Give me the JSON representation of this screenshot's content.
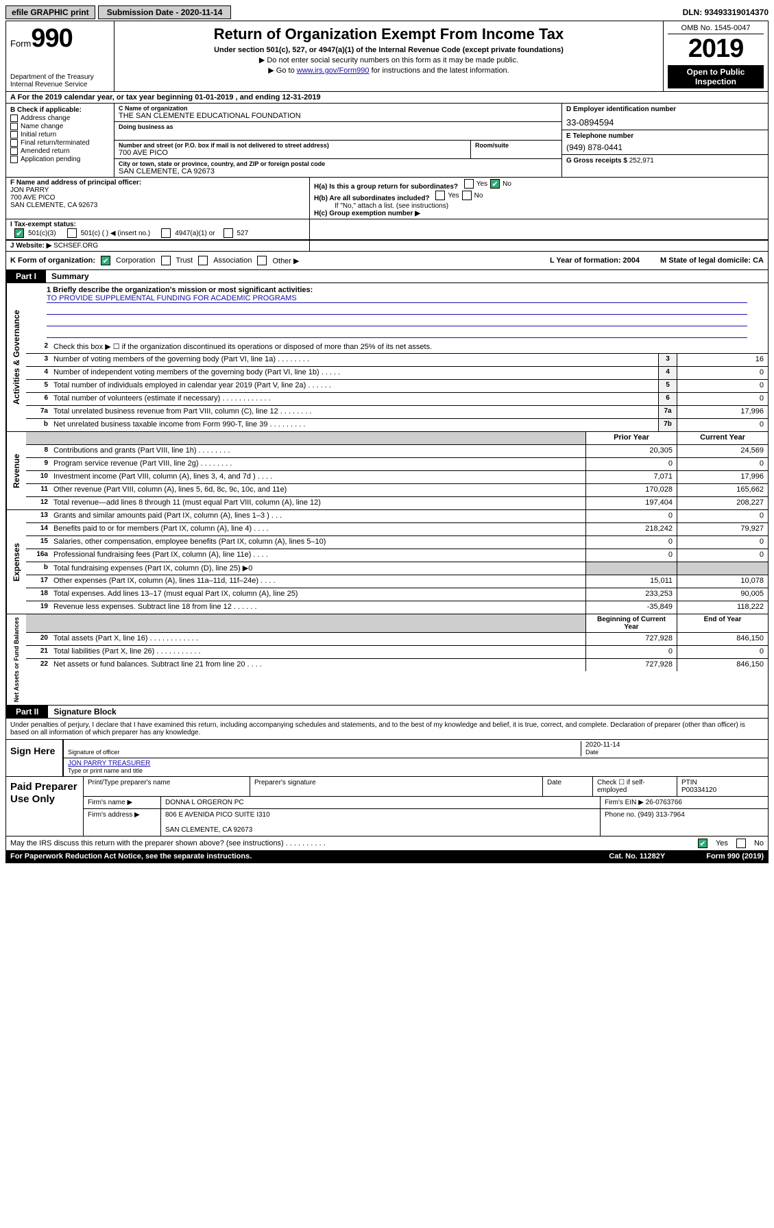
{
  "topbar": {
    "efile": "efile GRAPHIC print",
    "subdate_label": "Submission Date - 2020-11-14",
    "dln": "DLN: 93493319014370"
  },
  "header": {
    "form_prefix": "Form",
    "form_num": "990",
    "dept": "Department of the Treasury\nInternal Revenue Service",
    "title": "Return of Organization Exempt From Income Tax",
    "sub1": "Under section 501(c), 527, or 4947(a)(1) of the Internal Revenue Code (except private foundations)",
    "sub2": "▶ Do not enter social security numbers on this form as it may be made public.",
    "sub3_pre": "▶ Go to ",
    "sub3_link": "www.irs.gov/Form990",
    "sub3_post": " for instructions and the latest information.",
    "omb": "OMB No. 1545-0047",
    "year": "2019",
    "open": "Open to Public Inspection"
  },
  "lineA": "A For the 2019 calendar year, or tax year beginning 01-01-2019     , and ending 12-31-2019",
  "boxB": {
    "hdr": "B Check if applicable:",
    "items": [
      "Address change",
      "Name change",
      "Initial return",
      "Final return/terminated",
      "Amended return",
      "Application pending"
    ]
  },
  "boxC": {
    "name_lbl": "C Name of organization",
    "name": "THE SAN CLEMENTE EDUCATIONAL FOUNDATION",
    "dba_lbl": "Doing business as",
    "addr_lbl": "Number and street (or P.O. box if mail is not delivered to street address)",
    "room_lbl": "Room/suite",
    "addr": "700 AVE PICO",
    "city_lbl": "City or town, state or province, country, and ZIP or foreign postal code",
    "city": "SAN CLEMENTE, CA  92673"
  },
  "boxD": {
    "lbl": "D Employer identification number",
    "val": "33-0894594"
  },
  "boxE": {
    "lbl": "E Telephone number",
    "val": "(949) 878-0441"
  },
  "boxG": {
    "lbl": "G Gross receipts $",
    "val": "252,971"
  },
  "boxF": {
    "lbl": "F  Name and address of principal officer:",
    "name": "JON PARRY",
    "addr1": "700 AVE PICO",
    "addr2": "SAN CLEMENTE, CA  92673"
  },
  "boxH": {
    "a": "H(a)  Is this a group return for subordinates?",
    "b": "H(b)  Are all subordinates included?",
    "note": "If \"No,\" attach a list. (see instructions)",
    "c": "H(c)  Group exemption number ▶"
  },
  "boxI": {
    "lbl": "I   Tax-exempt status:",
    "c1": "501(c)(3)",
    "c2": "501(c) (   ) ◀ (insert no.)",
    "c3": "4947(a)(1) or",
    "c4": "527"
  },
  "boxJ": {
    "lbl": "J   Website: ▶",
    "val": "SCHSEF.ORG"
  },
  "boxK": {
    "lbl": "K Form of organization:",
    "opts": [
      "Corporation",
      "Trust",
      "Association",
      "Other ▶"
    ],
    "L": "L Year of formation: 2004",
    "M": "M State of legal domicile: CA"
  },
  "part1": {
    "tag": "Part I",
    "title": "Summary"
  },
  "mission": {
    "q": "1  Briefly describe the organization's mission or most significant activities:",
    "a": "TO PROVIDE SUPPLEMENTAL FUNDING FOR ACADEMIC PROGRAMS"
  },
  "gov": {
    "label": "Activities & Governance",
    "l2": "Check this box ▶ ☐  if the organization discontinued its operations or disposed of more than 25% of its net assets.",
    "rows": [
      {
        "n": "3",
        "t": "Number of voting members of the governing body (Part VI, line 1a)   .    .    .    .    .    .    .    .",
        "b": "3",
        "v": "16"
      },
      {
        "n": "4",
        "t": "Number of independent voting members of the governing body (Part VI, line 1b)   .    .    .    .    .",
        "b": "4",
        "v": "0"
      },
      {
        "n": "5",
        "t": "Total number of individuals employed in calendar year 2019 (Part V, line 2a)   .    .    .    .    .    .",
        "b": "5",
        "v": "0"
      },
      {
        "n": "6",
        "t": "Total number of volunteers (estimate if necessary)   .    .    .    .    .    .    .    .    .    .    .    .",
        "b": "6",
        "v": "0"
      },
      {
        "n": "7a",
        "t": "Total unrelated business revenue from Part VIII, column (C), line 12   .    .    .    .    .    .    .    .",
        "b": "7a",
        "v": "17,996"
      },
      {
        "n": "b",
        "t": "Net unrelated business taxable income from Form 990-T, line 39   .    .    .    .    .    .    .    .    .",
        "b": "7b",
        "v": "0"
      }
    ]
  },
  "rev": {
    "label": "Revenue",
    "hdr": {
      "py": "Prior Year",
      "cy": "Current Year"
    },
    "rows": [
      {
        "n": "8",
        "t": "Contributions and grants (Part VIII, line 1h)   .    .    .    .    .    .    .    .",
        "py": "20,305",
        "cy": "24,569"
      },
      {
        "n": "9",
        "t": "Program service revenue (Part VIII, line 2g)   .    .    .    .    .    .    .    .",
        "py": "0",
        "cy": "0"
      },
      {
        "n": "10",
        "t": "Investment income (Part VIII, column (A), lines 3, 4, and 7d )   .    .    .    .",
        "py": "7,071",
        "cy": "17,996"
      },
      {
        "n": "11",
        "t": "Other revenue (Part VIII, column (A), lines 5, 6d, 8c, 9c, 10c, and 11e)",
        "py": "170,028",
        "cy": "165,662"
      },
      {
        "n": "12",
        "t": "Total revenue—add lines 8 through 11 (must equal Part VIII, column (A), line 12)",
        "py": "197,404",
        "cy": "208,227"
      }
    ]
  },
  "exp": {
    "label": "Expenses",
    "rows": [
      {
        "n": "13",
        "t": "Grants and similar amounts paid (Part IX, column (A), lines 1–3 )   .    .    .",
        "py": "0",
        "cy": "0"
      },
      {
        "n": "14",
        "t": "Benefits paid to or for members (Part IX, column (A), line 4)   .    .    .    .",
        "py": "218,242",
        "cy": "79,927"
      },
      {
        "n": "15",
        "t": "Salaries, other compensation, employee benefits (Part IX, column (A), lines 5–10)",
        "py": "0",
        "cy": "0"
      },
      {
        "n": "16a",
        "t": "Professional fundraising fees (Part IX, column (A), line 11e)   .    .    .    .",
        "py": "0",
        "cy": "0"
      },
      {
        "n": "b",
        "t": "Total fundraising expenses (Part IX, column (D), line 25) ▶0",
        "py": "",
        "cy": "",
        "shade": true
      },
      {
        "n": "17",
        "t": "Other expenses (Part IX, column (A), lines 11a–11d, 11f–24e)   .    .    .    .",
        "py": "15,011",
        "cy": "10,078"
      },
      {
        "n": "18",
        "t": "Total expenses. Add lines 13–17 (must equal Part IX, column (A), line 25)",
        "py": "233,253",
        "cy": "90,005"
      },
      {
        "n": "19",
        "t": "Revenue less expenses. Subtract line 18 from line 12   .    .    .    .    .    .",
        "py": "-35,849",
        "cy": "118,222"
      }
    ]
  },
  "net": {
    "label": "Net Assets or Fund Balances",
    "hdr": {
      "py": "Beginning of Current Year",
      "cy": "End of Year"
    },
    "rows": [
      {
        "n": "20",
        "t": "Total assets (Part X, line 16)   .    .    .    .    .    .    .    .    .    .    .    .",
        "py": "727,928",
        "cy": "846,150"
      },
      {
        "n": "21",
        "t": "Total liabilities (Part X, line 26)   .    .    .    .    .    .    .    .    .    .    .",
        "py": "0",
        "cy": "0"
      },
      {
        "n": "22",
        "t": "Net assets or fund balances. Subtract line 21 from line 20   .    .    .    .",
        "py": "727,928",
        "cy": "846,150"
      }
    ]
  },
  "part2": {
    "tag": "Part II",
    "title": "Signature Block"
  },
  "perjury": "Under penalties of perjury, I declare that I have examined this return, including accompanying schedules and statements, and to the best of my knowledge and belief, it is true, correct, and complete. Declaration of preparer (other than officer) is based on all information of which preparer has any knowledge.",
  "sign": {
    "here": "Sign Here",
    "sig_lbl": "Signature of officer",
    "date_lbl": "Date",
    "date": "2020-11-14",
    "name": "JON PARRY  TREASURER",
    "name_lbl": "Type or print name and title"
  },
  "paid": {
    "lbl": "Paid Preparer Use Only",
    "h1": "Print/Type preparer's name",
    "h2": "Preparer's signature",
    "h3": "Date",
    "h4a": "Check ☐ if self-employed",
    "h4b": "PTIN",
    "ptin": "P00334120",
    "firm_lbl": "Firm's name      ▶",
    "firm": "DONNA L ORGERON PC",
    "ein_lbl": "Firm's EIN ▶",
    "ein": "26-0763766",
    "addr_lbl": "Firm's address ▶",
    "addr1": "806 E AVENIDA PICO SUITE I310",
    "addr2": "SAN CLEMENTE, CA  92673",
    "phone_lbl": "Phone no.",
    "phone": "(949) 313-7964"
  },
  "discuss": {
    "q": "May the IRS discuss this return with the preparer shown above? (see instructions)   .    .    .    .    .    .    .    .    .    .",
    "yes": "Yes",
    "no": "No"
  },
  "footer": {
    "l": "For Paperwork Reduction Act Notice, see the separate instructions.",
    "m": "Cat. No. 11282Y",
    "r": "Form 990 (2019)"
  }
}
